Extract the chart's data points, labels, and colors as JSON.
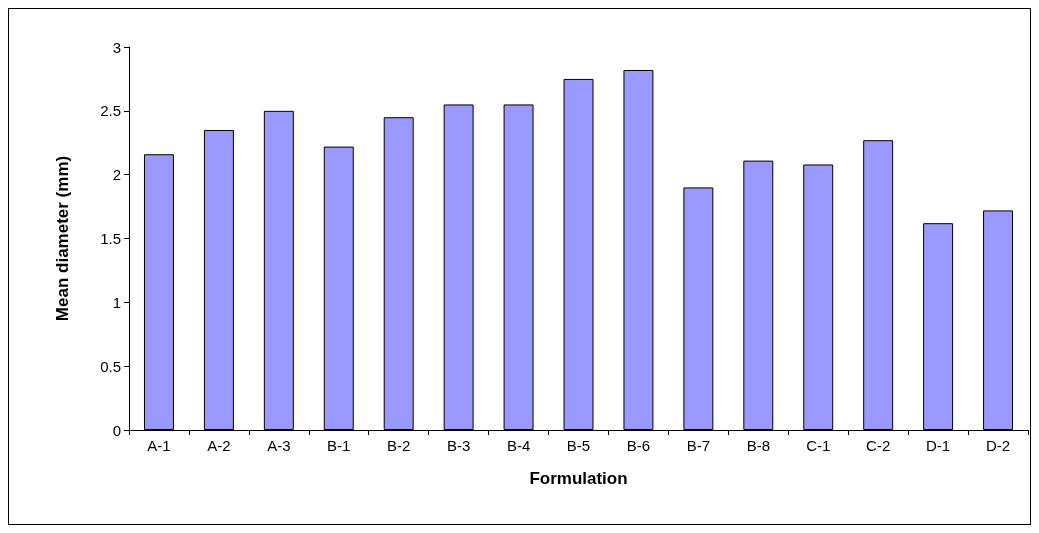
{
  "chart_data": {
    "type": "bar",
    "xlabel": "Formulation",
    "ylabel": "Mean diameter (mm)",
    "categories": [
      "A-1",
      "A-2",
      "A-3",
      "B-1",
      "B-2",
      "B-3",
      "B-4",
      "B-5",
      "B-6",
      "B-7",
      "B-8",
      "C-1",
      "C-2",
      "D-1",
      "D-2"
    ],
    "values": [
      2.16,
      2.35,
      2.5,
      2.22,
      2.45,
      2.55,
      2.55,
      2.75,
      2.82,
      1.9,
      2.11,
      2.08,
      2.27,
      1.62,
      1.72
    ],
    "color": "#9999ff",
    "ylim": [
      0,
      3
    ],
    "yticks": [
      0,
      0.5,
      1,
      1.5,
      2,
      2.5,
      3
    ],
    "grid": false
  }
}
